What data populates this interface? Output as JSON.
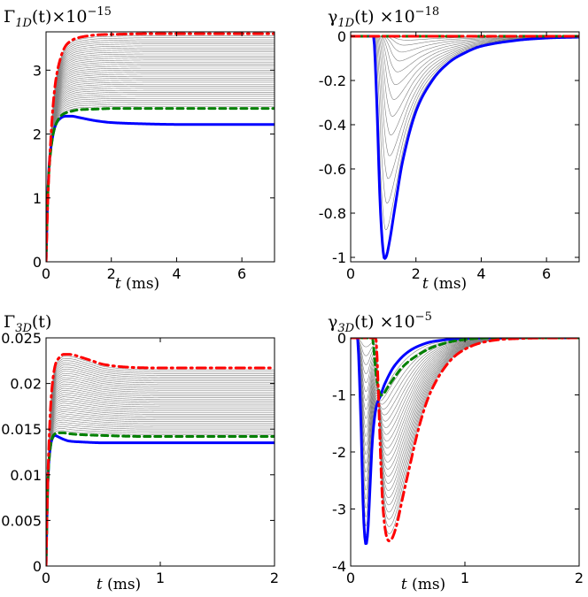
{
  "chart_data": [
    {
      "id": "p1",
      "type": "line",
      "title": "Γ1D(t)×10−15",
      "xlabel": "t (ms)",
      "ylabel": "",
      "xlim": [
        0,
        7
      ],
      "ylim": [
        0,
        3.6
      ],
      "xticks": [
        0,
        2,
        4,
        6
      ],
      "yticks": [
        0,
        1,
        2,
        3
      ],
      "xtick_labels": [
        "0",
        "2",
        "4",
        "6"
      ],
      "ytick_labels": [
        "0",
        "1",
        "2",
        "3"
      ],
      "grid": false,
      "background_family": {
        "color": "#808080",
        "count": 36,
        "from": "green",
        "to": "red"
      },
      "series": [
        {
          "name": "blue",
          "color": "#0000ff",
          "style": "solid",
          "width": 3,
          "x": [
            0,
            0.05,
            0.1,
            0.2,
            0.3,
            0.45,
            0.6,
            0.8,
            1.0,
            1.5,
            2.0,
            3.0,
            4.0,
            5.0,
            6.0,
            7.0
          ],
          "y": [
            0,
            1.0,
            1.55,
            1.95,
            2.15,
            2.25,
            2.28,
            2.28,
            2.26,
            2.21,
            2.18,
            2.16,
            2.15,
            2.15,
            2.15,
            2.15
          ]
        },
        {
          "name": "green",
          "color": "#008000",
          "style": "dashed",
          "width": 3,
          "x": [
            0,
            0.05,
            0.1,
            0.2,
            0.3,
            0.45,
            0.6,
            0.8,
            1.0,
            1.5,
            2.0,
            3.0,
            4.0,
            5.0,
            6.0,
            7.0
          ],
          "y": [
            0,
            1.0,
            1.5,
            1.95,
            2.15,
            2.28,
            2.33,
            2.36,
            2.38,
            2.39,
            2.4,
            2.4,
            2.4,
            2.4,
            2.4,
            2.4
          ]
        },
        {
          "name": "red",
          "color": "#ff0000",
          "style": "dash-dot",
          "width": 3,
          "x": [
            0,
            0.05,
            0.1,
            0.2,
            0.3,
            0.45,
            0.6,
            0.8,
            1.0,
            1.5,
            2.0,
            3.0,
            4.0,
            5.0,
            6.0,
            7.0
          ],
          "y": [
            0,
            0.9,
            1.5,
            2.35,
            2.85,
            3.2,
            3.38,
            3.47,
            3.51,
            3.55,
            3.56,
            3.57,
            3.57,
            3.57,
            3.57,
            3.57
          ]
        }
      ]
    },
    {
      "id": "p2",
      "type": "line",
      "title": "γ1D(t) ×10−18",
      "xlabel": "t (ms)",
      "ylabel": "",
      "xlim": [
        0,
        7
      ],
      "ylim": [
        -1.02,
        0.02
      ],
      "xticks": [
        0,
        2,
        4,
        6
      ],
      "yticks": [
        0,
        -0.2,
        -0.4,
        -0.6,
        -0.8,
        -1
      ],
      "xtick_labels": [
        "0",
        "2",
        "4",
        "6"
      ],
      "ytick_labels": [
        "0",
        "-0.2",
        "-0.4",
        "-0.6",
        "-0.8",
        "-1"
      ],
      "grid": false,
      "background_family": {
        "color": "#808080",
        "count": 14,
        "from": "green",
        "to": "blue"
      },
      "series": [
        {
          "name": "blue",
          "color": "#0000ff",
          "style": "solid",
          "width": 3,
          "x": [
            0,
            0.7,
            0.8,
            0.9,
            1.0,
            1.08,
            1.2,
            1.35,
            1.6,
            2.0,
            2.5,
            3.0,
            3.5,
            4.0,
            5.0,
            6.0,
            7.0
          ],
          "y": [
            0,
            0,
            -0.3,
            -0.75,
            -0.98,
            -1.0,
            -0.92,
            -0.78,
            -0.56,
            -0.34,
            -0.2,
            -0.12,
            -0.075,
            -0.045,
            -0.02,
            -0.008,
            -0.004
          ]
        },
        {
          "name": "green",
          "color": "#008000",
          "style": "dashed",
          "width": 3,
          "x": [
            0,
            7
          ],
          "y": [
            0,
            0
          ]
        },
        {
          "name": "red",
          "color": "#ff0000",
          "style": "dash-dot",
          "width": 3,
          "x": [
            0,
            7
          ],
          "y": [
            0,
            0
          ]
        }
      ]
    },
    {
      "id": "p3",
      "type": "line",
      "title": "Γ3D(t)",
      "xlabel": "t (ms)",
      "ylabel": "",
      "xlim": [
        0,
        2
      ],
      "ylim": [
        0,
        0.025
      ],
      "xticks": [
        0,
        1,
        2
      ],
      "yticks": [
        0,
        0.005,
        0.01,
        0.015,
        0.02,
        0.025
      ],
      "xtick_labels": [
        "0",
        "1",
        "2"
      ],
      "ytick_labels": [
        "0",
        "0.005",
        "0.01",
        "0.015",
        "0.02",
        "0.025"
      ],
      "grid": false,
      "background_family": {
        "color": "#808080",
        "count": 36,
        "from": "green",
        "to": "red"
      },
      "series": [
        {
          "name": "blue",
          "color": "#0000ff",
          "style": "solid",
          "width": 3,
          "x": [
            0,
            0.01,
            0.02,
            0.04,
            0.06,
            0.08,
            0.1,
            0.15,
            0.2,
            0.3,
            0.5,
            0.8,
            1.2,
            1.6,
            2.0
          ],
          "y": [
            0,
            0.0065,
            0.0105,
            0.0132,
            0.0141,
            0.0143,
            0.0142,
            0.0139,
            0.0137,
            0.0136,
            0.0135,
            0.0135,
            0.0135,
            0.0135,
            0.0135
          ]
        },
        {
          "name": "green",
          "color": "#008000",
          "style": "dashed",
          "width": 3,
          "x": [
            0,
            0.01,
            0.02,
            0.04,
            0.06,
            0.08,
            0.1,
            0.15,
            0.2,
            0.3,
            0.5,
            0.8,
            1.2,
            1.6,
            2.0
          ],
          "y": [
            0,
            0.0065,
            0.0105,
            0.0132,
            0.0142,
            0.0145,
            0.0146,
            0.0146,
            0.0145,
            0.0144,
            0.0143,
            0.0142,
            0.0142,
            0.0142,
            0.0142
          ]
        },
        {
          "name": "red",
          "color": "#ff0000",
          "style": "dash-dot",
          "width": 3,
          "x": [
            0,
            0.01,
            0.02,
            0.04,
            0.06,
            0.08,
            0.1,
            0.15,
            0.2,
            0.25,
            0.3,
            0.4,
            0.5,
            0.7,
            1.0,
            1.5,
            2.0
          ],
          "y": [
            0,
            0.0065,
            0.0115,
            0.0175,
            0.0205,
            0.022,
            0.0226,
            0.0232,
            0.0232,
            0.0231,
            0.0229,
            0.0225,
            0.0221,
            0.0218,
            0.0217,
            0.0217,
            0.0217
          ]
        }
      ]
    },
    {
      "id": "p4",
      "type": "line",
      "title": "γ3D(t) ×10−5",
      "xlabel": "t (ms)",
      "ylabel": "",
      "xlim": [
        0,
        2
      ],
      "ylim": [
        -4,
        0
      ],
      "xticks": [
        0,
        1,
        2
      ],
      "yticks": [
        0,
        -1,
        -2,
        -3,
        -4
      ],
      "xtick_labels": [
        "0",
        "1",
        "2"
      ],
      "ytick_labels": [
        "0",
        "-1",
        "-2",
        "-3",
        "-4"
      ],
      "grid": false,
      "background_family": {
        "color": "#808080",
        "count": 22,
        "from": "blue",
        "to": "red"
      },
      "series": [
        {
          "name": "blue",
          "color": "#0000ff",
          "style": "solid",
          "width": 3,
          "x": [
            0,
            0.06,
            0.09,
            0.11,
            0.13,
            0.15,
            0.17,
            0.19,
            0.22,
            0.26,
            0.3,
            0.38,
            0.5,
            0.65,
            0.8,
            1.0,
            1.2,
            1.5,
            2.0
          ],
          "y": [
            0,
            0,
            -1.5,
            -3.0,
            -3.6,
            -3.4,
            -2.6,
            -1.8,
            -1.25,
            -1.02,
            -0.8,
            -0.5,
            -0.25,
            -0.1,
            -0.04,
            -0.01,
            0,
            0,
            0
          ]
        },
        {
          "name": "green",
          "color": "#008000",
          "style": "dashed",
          "width": 3,
          "x": [
            0,
            0.19,
            0.22,
            0.25,
            0.28,
            0.32,
            0.38,
            0.45,
            0.55,
            0.7,
            0.85,
            1.0,
            1.2,
            2.0
          ],
          "y": [
            0,
            0,
            -0.6,
            -0.95,
            -1.0,
            -0.88,
            -0.7,
            -0.52,
            -0.35,
            -0.18,
            -0.08,
            -0.03,
            0,
            0
          ]
        },
        {
          "name": "red",
          "color": "#ff0000",
          "style": "dash-dot",
          "width": 3,
          "x": [
            0,
            0.22,
            0.24,
            0.26,
            0.28,
            0.31,
            0.35,
            0.4,
            0.45,
            0.5,
            0.6,
            0.7,
            0.85,
            1.0,
            1.2,
            1.5,
            2.0
          ],
          "y": [
            0,
            0,
            -0.8,
            -2.0,
            -2.9,
            -3.45,
            -3.55,
            -3.3,
            -2.85,
            -2.4,
            -1.55,
            -0.95,
            -0.45,
            -0.2,
            -0.06,
            -0.01,
            0
          ]
        }
      ]
    }
  ]
}
